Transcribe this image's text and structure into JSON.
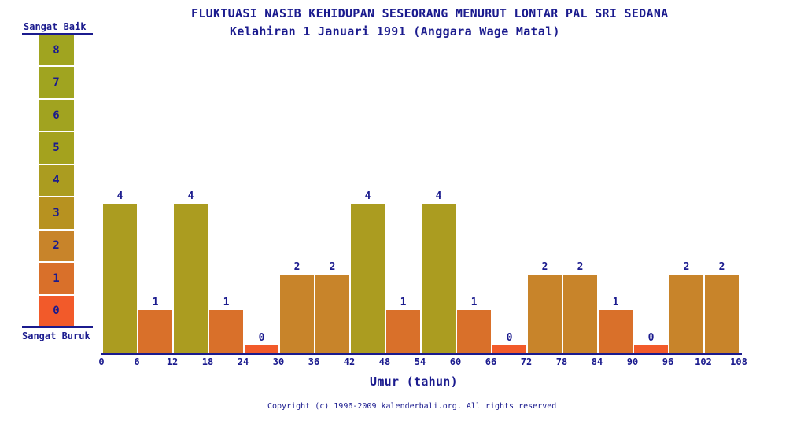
{
  "title": "FLUKTUASI NASIB KEHIDUPAN SESEORANG MENURUT LONTAR PAL SRI SEDANA",
  "subtitle": "Kelahiran 1 Januari 1991 (Anggara Wage Matal)",
  "legend": {
    "top_label": "Sangat Baik",
    "bottom_label": "Sangat Buruk",
    "levels": [
      8,
      7,
      6,
      5,
      4,
      3,
      2,
      1,
      0
    ]
  },
  "chart_data": {
    "type": "bar",
    "x_ticks": [
      0,
      6,
      12,
      18,
      24,
      30,
      36,
      42,
      48,
      54,
      60,
      66,
      72,
      78,
      84,
      90,
      96,
      102,
      108
    ],
    "age_intervals": [
      [
        0,
        6
      ],
      [
        6,
        12
      ],
      [
        12,
        18
      ],
      [
        18,
        24
      ],
      [
        24,
        30
      ],
      [
        30,
        36
      ],
      [
        36,
        42
      ],
      [
        42,
        48
      ],
      [
        48,
        54
      ],
      [
        54,
        60
      ],
      [
        60,
        66
      ],
      [
        66,
        72
      ],
      [
        72,
        78
      ],
      [
        78,
        84
      ],
      [
        84,
        90
      ],
      [
        90,
        96
      ],
      [
        96,
        102
      ],
      [
        102,
        108
      ]
    ],
    "values": [
      4,
      1,
      4,
      1,
      0,
      2,
      2,
      4,
      1,
      4,
      1,
      0,
      2,
      2,
      1,
      0,
      2,
      2
    ],
    "xlabel": "Umur (tahun)",
    "ylim": [
      0,
      8
    ],
    "grid": false,
    "legend_position": "left"
  },
  "colors": {
    "text": "#1b1b8e",
    "axis": "#1b1b8e",
    "background": "#ffffff",
    "scale_by_value": [
      "#f25a2a",
      "#d9702a",
      "#c8842a",
      "#b79220",
      "#ab9c20",
      "#a4a21e",
      "#a1a320",
      "#a0a420",
      "#a0a420"
    ]
  },
  "footer": {
    "copyright": "Copyright (c) 1996-2009 kalenderbali.org. All rights reserved"
  }
}
